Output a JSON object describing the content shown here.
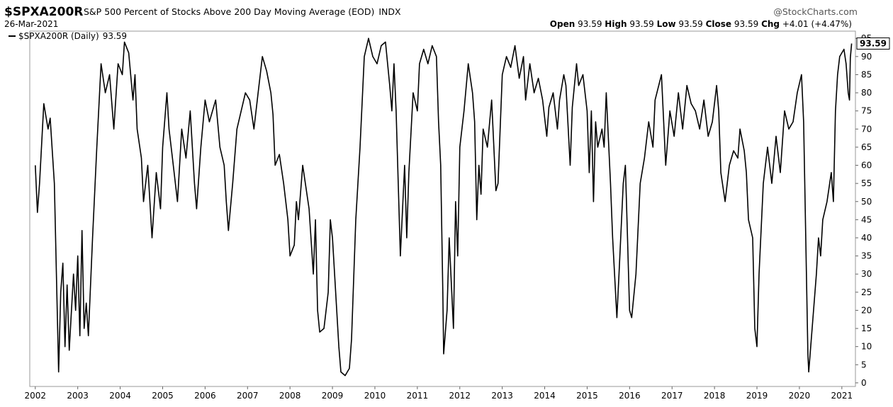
{
  "header": {
    "symbol": "$SPXA200R",
    "description": "S&P 500 Percent of Stocks Above 200 Day Moving Average (EOD)",
    "exchange": "INDX",
    "source": "@StockCharts.com",
    "date": "26-Mar-2021",
    "open_label": "Open",
    "open": 93.59,
    "high_label": "High",
    "high": 93.59,
    "low_label": "Low",
    "low": 93.59,
    "close_label": "Close",
    "close": 93.59,
    "chg_label": "Chg",
    "chg": "+4.01 (+4.47%)"
  },
  "chart_data": {
    "type": "line",
    "x": [
      2002.0,
      2002.05,
      2002.1,
      2002.2,
      2002.3,
      2002.35,
      2002.45,
      2002.55,
      2002.6,
      2002.65,
      2002.7,
      2002.75,
      2002.8,
      2002.9,
      2002.95,
      2003.0,
      2003.05,
      2003.1,
      2003.15,
      2003.2,
      2003.25,
      2003.35,
      2003.45,
      2003.55,
      2003.65,
      2003.75,
      2003.85,
      2003.95,
      2004.05,
      2004.1,
      2004.2,
      2004.3,
      2004.35,
      2004.4,
      2004.5,
      2004.55,
      2004.65,
      2004.75,
      2004.85,
      2004.95,
      2005.0,
      2005.1,
      2005.15,
      2005.25,
      2005.35,
      2005.45,
      2005.55,
      2005.65,
      2005.75,
      2005.8,
      2005.9,
      2006.0,
      2006.1,
      2006.25,
      2006.35,
      2006.45,
      2006.5,
      2006.55,
      2006.65,
      2006.75,
      2006.85,
      2006.95,
      2007.05,
      2007.15,
      2007.25,
      2007.35,
      2007.45,
      2007.55,
      2007.6,
      2007.65,
      2007.75,
      2007.85,
      2007.95,
      2008.0,
      2008.1,
      2008.15,
      2008.2,
      2008.3,
      2008.45,
      2008.55,
      2008.6,
      2008.65,
      2008.7,
      2008.8,
      2008.9,
      2008.95,
      2009.0,
      2009.05,
      2009.1,
      2009.15,
      2009.2,
      2009.3,
      2009.4,
      2009.45,
      2009.55,
      2009.65,
      2009.75,
      2009.85,
      2009.95,
      2010.05,
      2010.15,
      2010.25,
      2010.35,
      2010.4,
      2010.45,
      2010.5,
      2010.55,
      2010.6,
      2010.7,
      2010.75,
      2010.8,
      2010.9,
      2011.0,
      2011.05,
      2011.15,
      2011.25,
      2011.35,
      2011.45,
      2011.5,
      2011.55,
      2011.6,
      2011.62,
      2011.7,
      2011.75,
      2011.85,
      2011.9,
      2011.95,
      2012.0,
      2012.1,
      2012.2,
      2012.3,
      2012.35,
      2012.4,
      2012.45,
      2012.5,
      2012.55,
      2012.65,
      2012.75,
      2012.85,
      2012.9,
      2012.95,
      2013.0,
      2013.1,
      2013.2,
      2013.3,
      2013.4,
      2013.5,
      2013.55,
      2013.65,
      2013.75,
      2013.85,
      2013.95,
      2014.05,
      2014.1,
      2014.2,
      2014.3,
      2014.35,
      2014.45,
      2014.5,
      2014.6,
      2014.65,
      2014.75,
      2014.8,
      2014.9,
      2015.0,
      2015.05,
      2015.1,
      2015.15,
      2015.2,
      2015.25,
      2015.35,
      2015.4,
      2015.45,
      2015.55,
      2015.6,
      2015.7,
      2015.75,
      2015.85,
      2015.9,
      2015.95,
      2016.0,
      2016.05,
      2016.15,
      2016.25,
      2016.35,
      2016.45,
      2016.55,
      2016.6,
      2016.75,
      2016.85,
      2016.95,
      2017.05,
      2017.15,
      2017.25,
      2017.35,
      2017.45,
      2017.55,
      2017.65,
      2017.75,
      2017.85,
      2017.95,
      2018.05,
      2018.1,
      2018.15,
      2018.25,
      2018.35,
      2018.45,
      2018.55,
      2018.6,
      2018.7,
      2018.75,
      2018.8,
      2018.9,
      2018.95,
      2019.0,
      2019.05,
      2019.15,
      2019.25,
      2019.35,
      2019.45,
      2019.55,
      2019.65,
      2019.75,
      2019.85,
      2019.95,
      2020.05,
      2020.1,
      2020.15,
      2020.2,
      2020.22,
      2020.3,
      2020.4,
      2020.45,
      2020.5,
      2020.55,
      2020.65,
      2020.75,
      2020.8,
      2020.85,
      2020.9,
      2020.95,
      2021.05,
      2021.1,
      2021.15,
      2021.18,
      2021.2,
      2021.23
    ],
    "series": [
      {
        "name": "$SPXA200R (Daily)",
        "color": "#000000",
        "values": [
          60,
          47,
          55,
          77,
          70,
          73,
          55,
          3,
          25,
          33,
          10,
          27,
          9,
          30,
          20,
          35,
          13,
          42,
          15,
          22,
          13,
          40,
          65,
          88,
          80,
          85,
          70,
          88,
          85,
          94,
          91,
          78,
          85,
          70,
          62,
          50,
          60,
          40,
          58,
          48,
          65,
          80,
          70,
          60,
          50,
          70,
          62,
          75,
          55,
          48,
          65,
          78,
          72,
          78,
          65,
          60,
          50,
          42,
          55,
          70,
          75,
          80,
          78,
          70,
          80,
          90,
          86,
          80,
          74,
          60,
          63,
          55,
          45,
          35,
          38,
          50,
          45,
          60,
          48,
          30,
          45,
          20,
          14,
          15,
          25,
          45,
          40,
          30,
          20,
          10,
          3,
          2,
          4,
          12,
          45,
          65,
          90,
          95,
          90,
          88,
          93,
          94,
          82,
          75,
          88,
          75,
          55,
          35,
          60,
          40,
          58,
          80,
          75,
          88,
          92,
          88,
          93,
          90,
          72,
          60,
          25,
          8,
          20,
          40,
          15,
          50,
          35,
          65,
          75,
          88,
          80,
          72,
          45,
          60,
          52,
          70,
          65,
          78,
          53,
          55,
          70,
          85,
          90,
          87,
          93,
          84,
          90,
          78,
          88,
          80,
          84,
          78,
          68,
          76,
          80,
          70,
          78,
          85,
          82,
          60,
          76,
          88,
          82,
          85,
          75,
          58,
          75,
          50,
          72,
          65,
          70,
          65,
          80,
          55,
          40,
          18,
          30,
          55,
          60,
          40,
          20,
          18,
          30,
          55,
          62,
          72,
          65,
          78,
          85,
          60,
          75,
          68,
          80,
          70,
          82,
          77,
          75,
          70,
          78,
          68,
          72,
          82,
          75,
          58,
          50,
          60,
          64,
          62,
          70,
          64,
          58,
          45,
          40,
          15,
          10,
          30,
          55,
          65,
          55,
          68,
          58,
          75,
          70,
          72,
          80,
          85,
          72,
          40,
          8,
          3,
          15,
          30,
          40,
          35,
          45,
          50,
          58,
          50,
          75,
          85,
          90,
          92,
          88,
          80,
          78,
          89.58,
          93.59
        ]
      }
    ],
    "xlim": [
      2001.87,
      2021.32
    ],
    "xticks": [
      2002,
      2003,
      2004,
      2005,
      2006,
      2007,
      2008,
      2009,
      2010,
      2011,
      2012,
      2013,
      2014,
      2015,
      2016,
      2017,
      2018,
      2019,
      2020,
      2021
    ],
    "ylim": [
      -1,
      97
    ],
    "yticks": [
      0,
      5,
      10,
      15,
      20,
      25,
      30,
      35,
      40,
      45,
      50,
      55,
      60,
      65,
      70,
      75,
      80,
      85,
      90,
      95
    ],
    "grid": false
  }
}
